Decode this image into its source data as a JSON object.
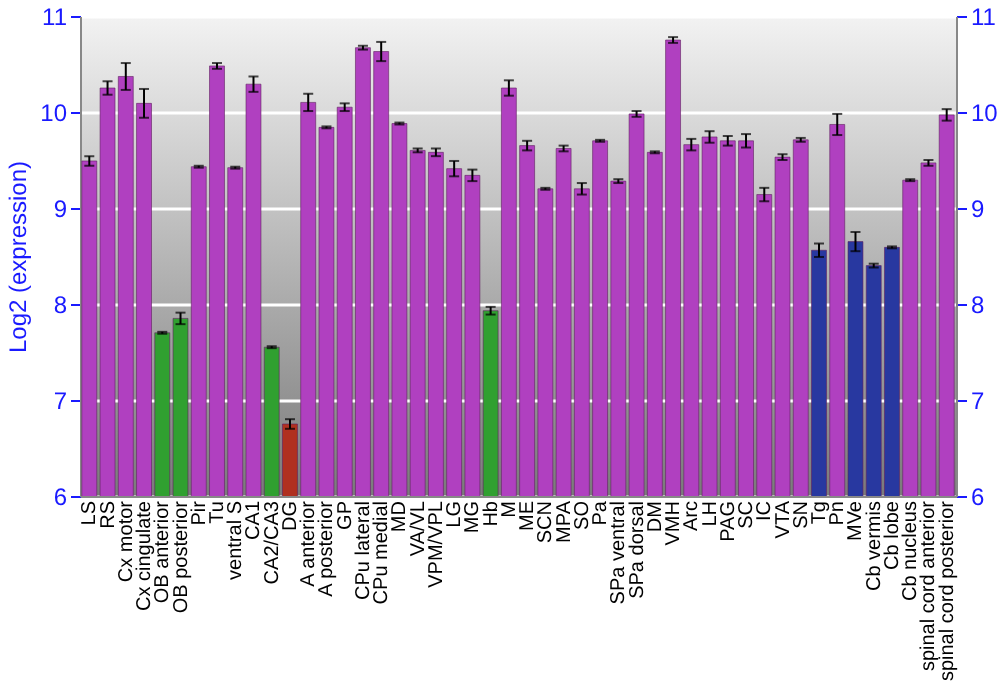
{
  "chart_data": {
    "type": "bar",
    "ylabel": "Log2 (expression)",
    "categories": [
      "LS",
      "RS",
      "Cx motor",
      "Cx cingulate",
      "OB anterior",
      "OB posterior",
      "Pir",
      "Tu",
      "ventral S",
      "CA1",
      "CA2/CA3",
      "DG",
      "A anterior",
      "A posterior",
      "GP",
      "CPu lateral",
      "CPu medial",
      "MD",
      "VA/VL",
      "VPM/VPL",
      "LG",
      "MG",
      "Hb",
      "M",
      "ME",
      "SCN",
      "MPA",
      "SO",
      "Pa",
      "SPa ventral",
      "SPa dorsal",
      "DM",
      "VMH",
      "Arc",
      "LH",
      "PAG",
      "SC",
      "IC",
      "VTA",
      "SN",
      "Tg",
      "Pn",
      "MVe",
      "Cb vermis",
      "Cb lobe",
      "Cb nucleus",
      "spinal cord anterior",
      "spinal cord posterior"
    ],
    "values": [
      9.49,
      10.25,
      10.37,
      10.09,
      7.7,
      7.85,
      9.43,
      10.48,
      9.42,
      10.29,
      7.55,
      6.75,
      10.1,
      9.84,
      10.05,
      10.67,
      10.63,
      9.88,
      9.6,
      9.58,
      9.41,
      9.34,
      7.93,
      10.25,
      9.65,
      9.2,
      9.62,
      9.2,
      9.7,
      9.28,
      9.98,
      9.58,
      10.75,
      9.66,
      9.74,
      9.7,
      9.7,
      9.14,
      9.53,
      9.71,
      8.56,
      9.87,
      8.65,
      8.4,
      8.59,
      9.29,
      9.47,
      9.97
    ],
    "errors": [
      0.05,
      0.07,
      0.14,
      0.15,
      0.01,
      0.06,
      0.01,
      0.03,
      0.01,
      0.08,
      0.01,
      0.05,
      0.09,
      0.01,
      0.04,
      0.02,
      0.1,
      0.01,
      0.02,
      0.04,
      0.08,
      0.06,
      0.04,
      0.08,
      0.05,
      0.01,
      0.03,
      0.06,
      0.01,
      0.02,
      0.03,
      0.01,
      0.03,
      0.06,
      0.06,
      0.05,
      0.07,
      0.07,
      0.03,
      0.02,
      0.07,
      0.11,
      0.1,
      0.02,
      0.01,
      0.01,
      0.03,
      0.06
    ],
    "colors": [
      "#b040c0",
      "#b040c0",
      "#b040c0",
      "#b040c0",
      "#30a030",
      "#30a030",
      "#b040c0",
      "#b040c0",
      "#b040c0",
      "#b040c0",
      "#30a030",
      "#b03020",
      "#b040c0",
      "#b040c0",
      "#b040c0",
      "#b040c0",
      "#b040c0",
      "#b040c0",
      "#b040c0",
      "#b040c0",
      "#b040c0",
      "#b040c0",
      "#30a030",
      "#b040c0",
      "#b040c0",
      "#b040c0",
      "#b040c0",
      "#b040c0",
      "#b040c0",
      "#b040c0",
      "#b040c0",
      "#b040c0",
      "#b040c0",
      "#b040c0",
      "#b040c0",
      "#b040c0",
      "#b040c0",
      "#b040c0",
      "#b040c0",
      "#b040c0",
      "#2838a0",
      "#b040c0",
      "#2838a0",
      "#2838a0",
      "#2838a0",
      "#b040c0",
      "#b040c0",
      "#b040c0"
    ],
    "ylim": [
      6,
      11
    ],
    "yticks": [
      6,
      7,
      8,
      9,
      10,
      11
    ],
    "y2lim": [
      6,
      11
    ],
    "y2ticks": [
      6,
      7,
      8,
      9,
      10,
      11
    ],
    "grid": "y"
  }
}
